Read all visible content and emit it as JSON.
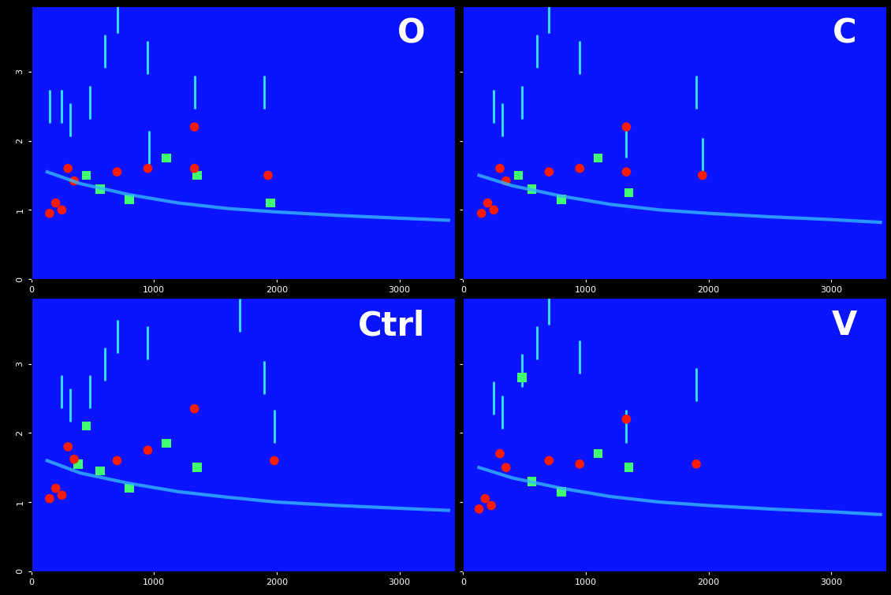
{
  "chart_data": [
    {
      "type": "scatter",
      "title": "O",
      "xlim": [
        0,
        3450
      ],
      "ylim": [
        0,
        3.95
      ],
      "xticks": [
        0,
        1000,
        2000,
        3000
      ],
      "yticks": [
        0,
        1,
        2,
        3
      ],
      "tick_labels": true,
      "series": [
        {
          "type": "line",
          "color": "#35b8ff",
          "line_style": "solid",
          "x": [
            130,
            400,
            800,
            1200,
            1600,
            2000,
            2500,
            3000,
            3400
          ],
          "y": [
            1.55,
            1.38,
            1.22,
            1.1,
            1.02,
            0.97,
            0.92,
            0.88,
            0.85
          ]
        },
        {
          "type": "scatter",
          "color": "#30e8ff",
          "marker": "|",
          "x": [
            250,
            320,
            480,
            600,
            700,
            950,
            1330,
            1900,
            960,
            150
          ],
          "y": [
            2.5,
            2.3,
            2.55,
            3.3,
            3.8,
            3.2,
            2.7,
            2.7,
            1.9,
            2.5
          ]
        },
        {
          "type": "scatter",
          "color": "#40ff70",
          "marker": "s",
          "x": [
            560,
            800,
            1350,
            1950,
            1100,
            450
          ],
          "y": [
            1.3,
            1.15,
            1.5,
            1.1,
            1.75,
            1.5
          ]
        },
        {
          "type": "scatter",
          "color": "#ff1a00",
          "marker": "o",
          "x": [
            150,
            200,
            250,
            300,
            350,
            700,
            950,
            1330,
            1330,
            1930
          ],
          "y": [
            0.95,
            1.1,
            1.0,
            1.6,
            1.42,
            1.55,
            1.6,
            2.2,
            1.6,
            1.5
          ]
        }
      ]
    },
    {
      "type": "scatter",
      "title": "C",
      "xlim": [
        0,
        3450
      ],
      "ylim": [
        0,
        3.95
      ],
      "xticks": [
        0,
        1000,
        2000,
        3000
      ],
      "yticks": [
        0,
        1,
        2,
        3
      ],
      "tick_labels": "x",
      "series": [
        {
          "type": "line",
          "color": "#35b8ff",
          "line_style": "solid",
          "x": [
            130,
            400,
            800,
            1200,
            1600,
            2000,
            2500,
            3000,
            3400
          ],
          "y": [
            1.5,
            1.35,
            1.2,
            1.08,
            1.0,
            0.95,
            0.9,
            0.86,
            0.82
          ]
        },
        {
          "type": "scatter",
          "color": "#30e8ff",
          "marker": "|",
          "x": [
            250,
            320,
            480,
            600,
            700,
            950,
            1330,
            1900,
            1950
          ],
          "y": [
            2.5,
            2.3,
            2.55,
            3.3,
            3.8,
            3.2,
            2.0,
            2.7,
            1.8
          ]
        },
        {
          "type": "scatter",
          "color": "#40ff70",
          "marker": "s",
          "x": [
            560,
            800,
            1350,
            1100,
            450
          ],
          "y": [
            1.3,
            1.15,
            1.25,
            1.75,
            1.5
          ]
        },
        {
          "type": "scatter",
          "color": "#ff1a00",
          "marker": "o",
          "x": [
            150,
            200,
            250,
            300,
            350,
            700,
            950,
            1330,
            1330,
            1950
          ],
          "y": [
            0.95,
            1.1,
            1.0,
            1.6,
            1.42,
            1.55,
            1.6,
            2.2,
            1.55,
            1.5
          ]
        }
      ]
    },
    {
      "type": "scatter",
      "title": "Ctrl",
      "xlim": [
        0,
        3450
      ],
      "ylim": [
        0,
        3.95
      ],
      "xticks": [
        0,
        1000,
        2000,
        3000
      ],
      "yticks": [
        0,
        1,
        2,
        3
      ],
      "tick_labels": true,
      "series": [
        {
          "type": "line",
          "color": "#35b8ff",
          "line_style": "solid",
          "x": [
            130,
            400,
            800,
            1200,
            1600,
            2000,
            2500,
            3000,
            3400
          ],
          "y": [
            1.6,
            1.42,
            1.27,
            1.15,
            1.07,
            1.0,
            0.95,
            0.91,
            0.88
          ]
        },
        {
          "type": "scatter",
          "color": "#30e8ff",
          "marker": "|",
          "x": [
            250,
            320,
            480,
            600,
            700,
            950,
            1700,
            1900,
            1980
          ],
          "y": [
            2.6,
            2.4,
            2.6,
            3.0,
            3.4,
            3.3,
            3.7,
            2.8,
            2.1
          ]
        },
        {
          "type": "scatter",
          "color": "#40ff70",
          "marker": "s",
          "x": [
            560,
            800,
            1350,
            1100,
            450,
            380
          ],
          "y": [
            1.45,
            1.2,
            1.5,
            1.85,
            2.1,
            1.55
          ]
        },
        {
          "type": "scatter",
          "color": "#ff1a00",
          "marker": "o",
          "x": [
            150,
            200,
            250,
            300,
            350,
            700,
            950,
            1330,
            1980
          ],
          "y": [
            1.05,
            1.2,
            1.1,
            1.8,
            1.62,
            1.6,
            1.75,
            2.35,
            1.6
          ]
        }
      ]
    },
    {
      "type": "scatter",
      "title": "V",
      "xlim": [
        0,
        3450
      ],
      "ylim": [
        0,
        3.95
      ],
      "xticks": [
        0,
        1000,
        2000,
        3000
      ],
      "yticks": [
        0,
        1,
        2,
        3
      ],
      "tick_labels": "x",
      "series": [
        {
          "type": "line",
          "color": "#35b8ff",
          "line_style": "solid",
          "x": [
            130,
            400,
            800,
            1200,
            1600,
            2000,
            2500,
            3000,
            3400
          ],
          "y": [
            1.5,
            1.35,
            1.2,
            1.08,
            1.0,
            0.95,
            0.9,
            0.86,
            0.82
          ]
        },
        {
          "type": "scatter",
          "color": "#30e8ff",
          "marker": "|",
          "x": [
            250,
            320,
            480,
            600,
            700,
            950,
            1330,
            1900
          ],
          "y": [
            2.5,
            2.3,
            2.9,
            3.3,
            3.8,
            3.1,
            2.1,
            2.7
          ]
        },
        {
          "type": "scatter",
          "color": "#40ff70",
          "marker": "s",
          "x": [
            480,
            560,
            800,
            1100,
            1350
          ],
          "y": [
            2.8,
            1.3,
            1.15,
            1.7,
            1.5
          ]
        },
        {
          "type": "scatter",
          "color": "#ff1a00",
          "marker": "o",
          "x": [
            130,
            180,
            230,
            300,
            350,
            700,
            950,
            1330,
            1900
          ],
          "y": [
            0.9,
            1.05,
            0.95,
            1.7,
            1.5,
            1.6,
            1.55,
            2.2,
            1.55
          ]
        }
      ]
    }
  ]
}
